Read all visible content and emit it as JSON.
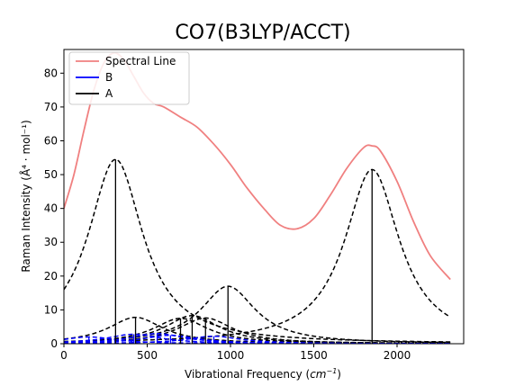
{
  "chart_data": {
    "type": "line",
    "title": "CO7(B3LYP/ACCT)",
    "xlabel": "Vibrational Frequency (cm⁻¹)",
    "xlabel_main": "Vibrational Frequency (",
    "xlabel_unit": "cm",
    "xlabel_sup": "−1",
    "xlabel_close": ")",
    "ylabel": "Raman Intensity (Å⁴ · mol⁻¹)",
    "xlim": [
      0,
      2400
    ],
    "ylim": [
      0,
      87
    ],
    "xticks": [
      0,
      500,
      1000,
      1500,
      2000
    ],
    "yticks": [
      0,
      10,
      20,
      30,
      40,
      50,
      60,
      70,
      80
    ],
    "grid": false,
    "legend_position": "top-left",
    "legend": [
      {
        "label": "Spectral Line",
        "color": "#f08080",
        "style": "solid"
      },
      {
        "label": "B",
        "color": "#0000ff",
        "style": "solid"
      },
      {
        "label": "A",
        "color": "#000000",
        "style": "solid"
      }
    ],
    "spectral_line": {
      "color": "#f08080",
      "x": [
        0,
        60,
        120,
        180,
        240,
        300,
        360,
        420,
        480,
        540,
        600,
        700,
        800,
        900,
        1000,
        1100,
        1200,
        1300,
        1400,
        1500,
        1600,
        1700,
        1800,
        1850,
        1900,
        2000,
        2100,
        2200,
        2320
      ],
      "y": [
        40,
        50,
        63,
        75,
        83,
        86,
        84,
        79,
        74,
        71,
        70,
        67,
        64,
        59,
        53,
        46,
        40,
        35,
        34,
        37,
        44,
        52,
        58,
        58.5,
        57,
        48,
        36,
        26,
        19
      ]
    },
    "sticks": [
      {
        "type": "A",
        "x": 310,
        "y": 54.5
      },
      {
        "type": "A",
        "x": 430,
        "y": 7.8
      },
      {
        "type": "A",
        "x": 700,
        "y": 7.5
      },
      {
        "type": "A",
        "x": 770,
        "y": 8.3
      },
      {
        "type": "A",
        "x": 850,
        "y": 7.6
      },
      {
        "type": "A",
        "x": 985,
        "y": 17.0
      },
      {
        "type": "A",
        "x": 1850,
        "y": 51.5
      },
      {
        "type": "B",
        "x": 150,
        "y": 2.0
      },
      {
        "type": "B",
        "x": 420,
        "y": 2.8
      },
      {
        "type": "B",
        "x": 560,
        "y": 3.0
      },
      {
        "type": "B",
        "x": 640,
        "y": 2.5
      },
      {
        "type": "B",
        "x": 900,
        "y": 2.2
      }
    ],
    "lorentz_gamma": 200
  }
}
